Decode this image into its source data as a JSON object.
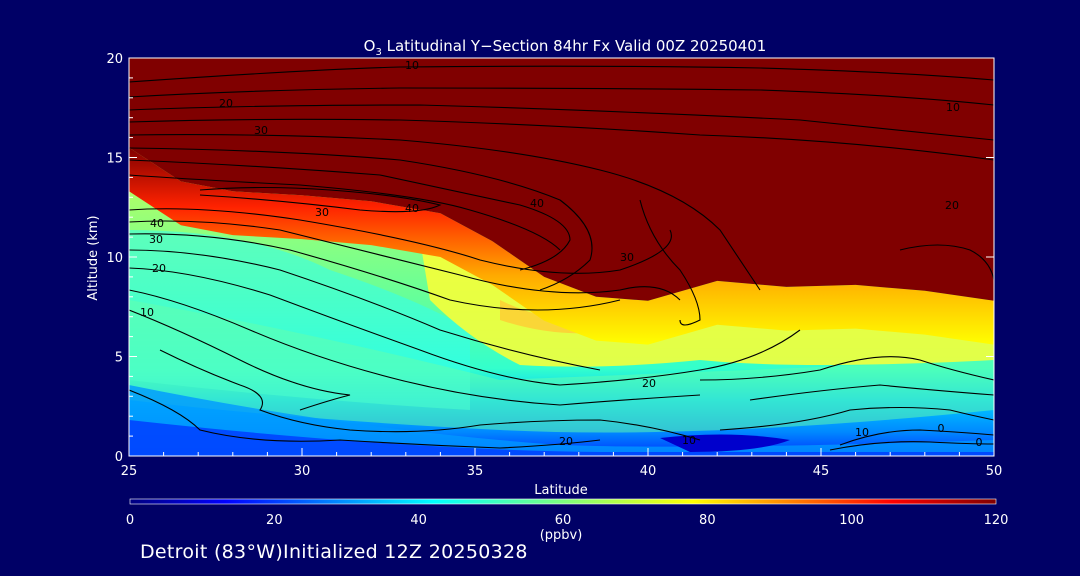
{
  "chart_data": {
    "type": "heatmap",
    "title_prefix": "O",
    "title_sub": "3",
    "title_rest": " Latitudinal Y−Section 84hr  Fx Valid 00Z 20250401",
    "xlabel": "Latitude",
    "ylabel": "Altitude (km)",
    "xlim": [
      25,
      50
    ],
    "ylim": [
      0,
      20
    ],
    "x_ticks": [
      "25",
      "30",
      "35",
      "40",
      "45",
      "50"
    ],
    "y_ticks": [
      "0",
      "5",
      "10",
      "15",
      "20"
    ],
    "colorbar": {
      "ticks": [
        "0",
        "20",
        "40",
        "60",
        "80",
        "100",
        "120"
      ],
      "unit": "(ppbv)",
      "range": [
        0,
        120
      ]
    },
    "colors": {
      "background": "#000066",
      "field_high": "#800000",
      "contour": "#000000"
    },
    "contour_labels": [
      "10",
      "20",
      "30",
      "40",
      "10",
      "20",
      "40",
      "30",
      "20",
      "10",
      "0",
      "30",
      "40",
      "30",
      "20",
      "10",
      "20",
      "10",
      "0"
    ],
    "tropopause_altitude_km": [
      [
        25,
        15.5
      ],
      [
        26.5,
        13.8
      ],
      [
        28,
        13.3
      ],
      [
        30,
        13.1
      ],
      [
        32,
        12.8
      ],
      [
        34,
        12.2
      ],
      [
        35.5,
        10.8
      ],
      [
        37,
        9.0
      ],
      [
        38.5,
        8.0
      ],
      [
        40,
        7.8
      ],
      [
        42,
        8.8
      ],
      [
        44,
        8.5
      ],
      [
        46,
        8.6
      ],
      [
        48,
        8.3
      ],
      [
        50,
        7.8
      ]
    ]
  },
  "footer": {
    "location": "Detroit (83°W)",
    "initialized": "Initialized 12Z 20250328"
  }
}
